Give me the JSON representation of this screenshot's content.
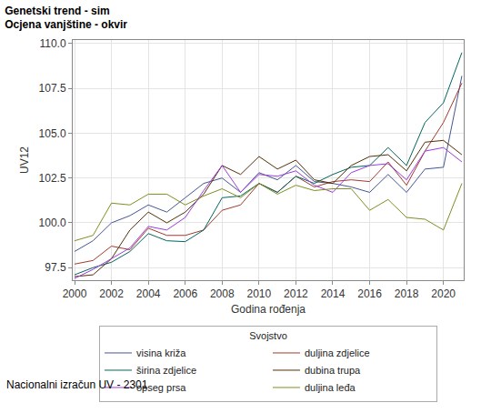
{
  "chart_data": {
    "type": "line",
    "title": "Genetski trend - sim",
    "subtitle": "Ocjena vanjštine - okvir",
    "x_label": "Godina rođenja",
    "y_label": "UV12",
    "footnote": "Nacionalni izračun UV - 2301",
    "legend_title": "Svojstvo",
    "legend": "bottom",
    "grid": true,
    "x": [
      2000,
      2001,
      2002,
      2003,
      2004,
      2005,
      2006,
      2007,
      2008,
      2009,
      2010,
      2011,
      2012,
      2013,
      2014,
      2015,
      2016,
      2017,
      2018,
      2019,
      2020,
      2021
    ],
    "xlim": [
      1999.9,
      2021.1
    ],
    "xticks": [
      2000,
      2002,
      2004,
      2006,
      2008,
      2010,
      2012,
      2014,
      2016,
      2018,
      2020
    ],
    "ylim": [
      96.8,
      110.2
    ],
    "yticks": [
      97.5,
      {
        "value": 100,
        "label": "100.0"
      },
      102.5,
      {
        "value": 105,
        "label": "105.0"
      },
      107.5,
      {
        "value": 110,
        "label": "110.0"
      }
    ],
    "series": [
      {
        "name": "visina križa",
        "color": "#445694",
        "values": [
          98.4,
          99.0,
          100.0,
          100.4,
          101.0,
          100.6,
          101.4,
          102.2,
          102.5,
          101.7,
          102.8,
          102.4,
          103.2,
          102.3,
          102.2,
          102.0,
          101.7,
          102.7,
          101.7,
          103.0,
          103.1,
          108.2
        ]
      },
      {
        "name": "duljina zdjelice",
        "color": "#A23A2E",
        "values": [
          97.7,
          97.9,
          98.7,
          98.5,
          99.7,
          99.3,
          99.3,
          99.6,
          100.7,
          101.0,
          102.2,
          101.7,
          102.6,
          102.0,
          102.3,
          102.4,
          102.3,
          103.4,
          102.1,
          104.0,
          105.6,
          107.8
        ]
      },
      {
        "name": "širina zdjelice",
        "color": "#01665E",
        "values": [
          97.1,
          97.5,
          97.8,
          98.4,
          99.4,
          99.0,
          98.95,
          99.6,
          101.4,
          101.5,
          102.2,
          101.7,
          102.6,
          102.2,
          102.7,
          103.1,
          103.2,
          104.2,
          103.2,
          105.6,
          106.7,
          109.5
        ]
      },
      {
        "name": "dubina trupa",
        "color": "#543005",
        "values": [
          97.0,
          97.1,
          98.0,
          99.6,
          100.6,
          100.0,
          100.6,
          101.6,
          103.2,
          102.7,
          103.7,
          103.0,
          103.5,
          102.4,
          102.2,
          103.2,
          103.7,
          103.8,
          102.9,
          104.5,
          104.6,
          103.8
        ]
      },
      {
        "name": "opseg prsa",
        "color": "#9D3CDB",
        "values": [
          96.9,
          97.4,
          98.0,
          98.6,
          99.8,
          99.6,
          100.3,
          101.8,
          103.2,
          101.7,
          102.7,
          102.6,
          102.9,
          102.1,
          101.7,
          102.8,
          103.2,
          103.3,
          102.4,
          104.0,
          104.2,
          103.4
        ]
      },
      {
        "name": "duljina leđa",
        "color": "#7F8E1F",
        "values": [
          99.0,
          99.3,
          101.1,
          101.0,
          101.6,
          101.6,
          101.0,
          101.5,
          101.9,
          101.4,
          102.2,
          101.6,
          102.1,
          101.8,
          101.9,
          101.9,
          100.7,
          101.3,
          100.3,
          100.2,
          99.6,
          102.2
        ]
      }
    ]
  }
}
